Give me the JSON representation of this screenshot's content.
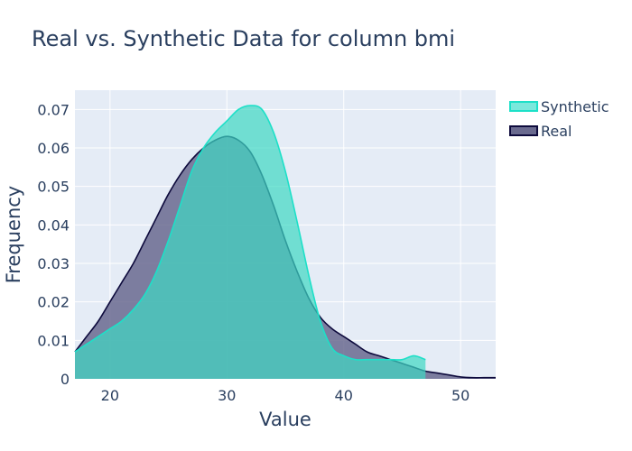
{
  "chart_data": {
    "type": "area",
    "title": "Real vs. Synthetic Data for column bmi",
    "xlabel": "Value",
    "ylabel": "Frequency",
    "xlim": [
      17,
      53
    ],
    "ylim": [
      0,
      0.075
    ],
    "x_ticks": [
      20,
      30,
      40,
      50
    ],
    "y_ticks": [
      0,
      0.01,
      0.02,
      0.03,
      0.04,
      0.05,
      0.06,
      0.07
    ],
    "y_tick_labels": [
      "0",
      "0.01",
      "0.02",
      "0.03",
      "0.04",
      "0.05",
      "0.06",
      "0.07"
    ],
    "grid": true,
    "legend_position": "top-right",
    "series": [
      {
        "name": "Real",
        "color": "#0d0a3c",
        "fill": "#6a6a8f",
        "x": [
          17,
          18,
          19,
          20,
          21,
          22,
          23,
          24,
          25,
          26,
          27,
          28,
          29,
          30,
          31,
          32,
          33,
          34,
          35,
          36,
          37,
          38,
          39,
          40,
          41,
          42,
          43,
          44,
          45,
          46,
          47,
          48,
          49,
          50,
          51,
          52,
          53
        ],
        "y": [
          0.007,
          0.011,
          0.015,
          0.02,
          0.025,
          0.03,
          0.036,
          0.042,
          0.048,
          0.053,
          0.057,
          0.06,
          0.062,
          0.063,
          0.062,
          0.059,
          0.053,
          0.045,
          0.036,
          0.028,
          0.021,
          0.016,
          0.013,
          0.011,
          0.009,
          0.007,
          0.006,
          0.005,
          0.004,
          0.003,
          0.002,
          0.0015,
          0.001,
          0.0005,
          0.0003,
          0.0003,
          0.0003
        ]
      },
      {
        "name": "Synthetic",
        "color": "#1de0c8",
        "fill": "#3ed9c3",
        "x": [
          17,
          18,
          19,
          20,
          21,
          22,
          23,
          24,
          25,
          26,
          27,
          28,
          29,
          30,
          31,
          32,
          33,
          34,
          35,
          36,
          37,
          38,
          39,
          40,
          41,
          42,
          43,
          44,
          45,
          46,
          47
        ],
        "y": [
          0.007,
          0.009,
          0.011,
          0.013,
          0.015,
          0.018,
          0.022,
          0.028,
          0.036,
          0.045,
          0.054,
          0.06,
          0.064,
          0.067,
          0.07,
          0.071,
          0.07,
          0.064,
          0.054,
          0.041,
          0.027,
          0.015,
          0.008,
          0.006,
          0.005,
          0.005,
          0.005,
          0.005,
          0.005,
          0.006,
          0.005
        ]
      }
    ],
    "legend": [
      {
        "name": "Synthetic",
        "color": "#1de0c8",
        "fill": "#7be8dc"
      },
      {
        "name": "Real",
        "color": "#0d0a3c",
        "fill": "#6a6a8f"
      }
    ]
  }
}
